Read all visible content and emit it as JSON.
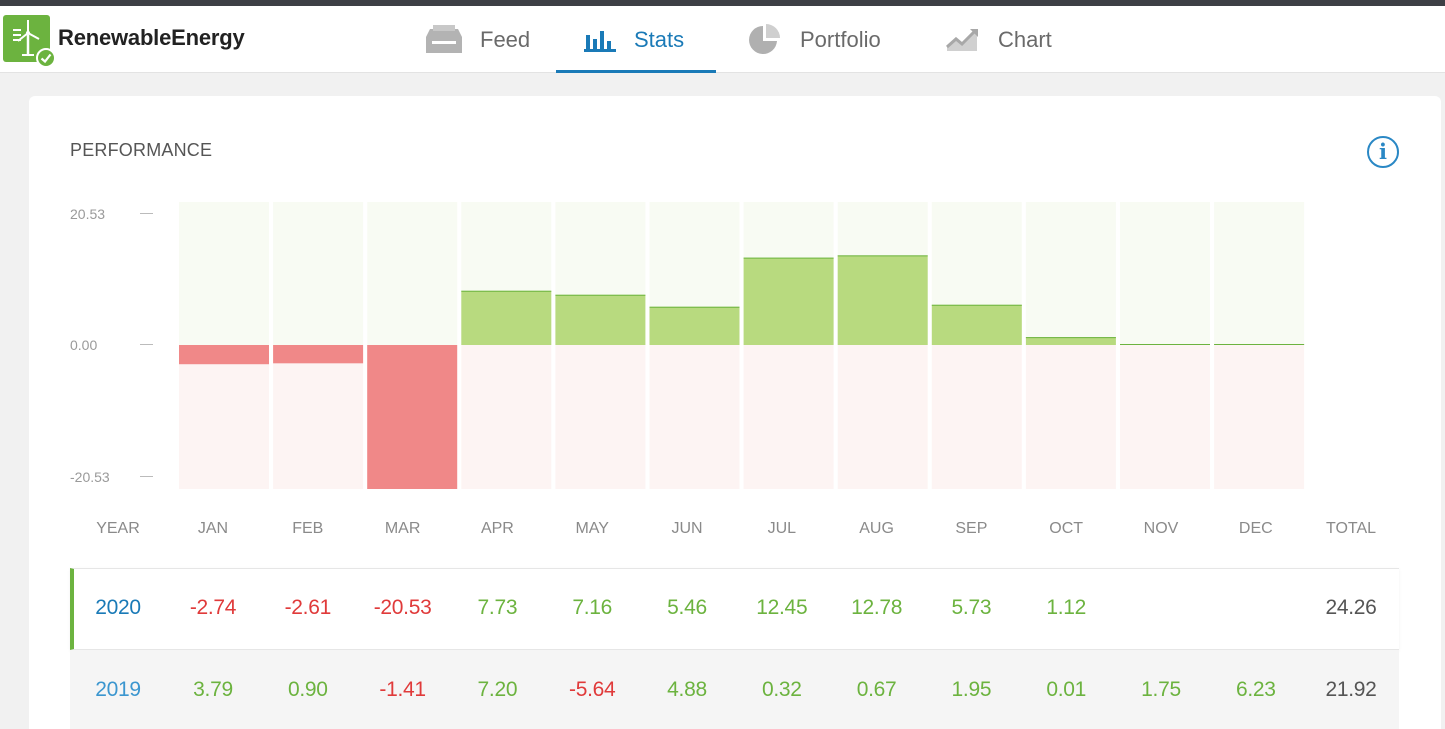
{
  "app": {
    "brand": "RenewableEnergy"
  },
  "nav": {
    "tabs": [
      {
        "label": "Feed",
        "icon": "feed-icon",
        "active": false
      },
      {
        "label": "Stats",
        "icon": "bar-chart-icon",
        "active": true
      },
      {
        "label": "Portfolio",
        "icon": "pie-chart-icon",
        "active": false
      },
      {
        "label": "Chart",
        "icon": "trend-chart-icon",
        "active": false
      }
    ]
  },
  "performance": {
    "title": "PERFORMANCE",
    "info_icon": "i",
    "yticks": [
      "20.53",
      "0.00",
      "-20.53"
    ],
    "headers": {
      "year": "YEAR",
      "months": [
        "JAN",
        "FEB",
        "MAR",
        "APR",
        "MAY",
        "JUN",
        "JUL",
        "AUG",
        "SEP",
        "OCT",
        "NOV",
        "DEC"
      ],
      "total": "TOTAL"
    },
    "rows": [
      {
        "year": "2020",
        "values": [
          "-2.74",
          "-2.61",
          "-20.53",
          "7.73",
          "7.16",
          "5.46",
          "12.45",
          "12.78",
          "5.73",
          "1.12",
          "",
          ""
        ],
        "total": "24.26"
      },
      {
        "year": "2019",
        "values": [
          "3.79",
          "0.90",
          "-1.41",
          "7.20",
          "-5.64",
          "4.88",
          "0.32",
          "0.67",
          "1.95",
          "0.01",
          "1.75",
          "6.23"
        ],
        "total": "21.92"
      }
    ]
  },
  "chart_data": {
    "type": "bar",
    "categories": [
      "JAN",
      "FEB",
      "MAR",
      "APR",
      "MAY",
      "JUN",
      "JUL",
      "AUG",
      "SEP",
      "OCT",
      "NOV",
      "DEC"
    ],
    "values": [
      -2.74,
      -2.61,
      -20.53,
      7.73,
      7.16,
      5.46,
      12.45,
      12.78,
      5.73,
      1.12,
      0,
      0
    ],
    "ylim": [
      -20.53,
      20.53
    ],
    "yticks": [
      20.53,
      0,
      -20.53
    ],
    "colors": {
      "positive": "#b8da7f",
      "negative": "#f08888",
      "positive_bg": "#f8fbf3",
      "negative_bg": "#fdf4f3"
    }
  }
}
